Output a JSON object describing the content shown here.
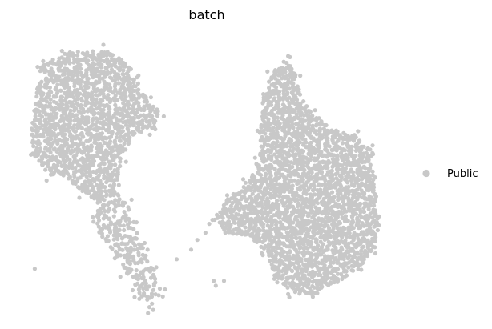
{
  "chart_data": {
    "type": "scatter",
    "title": "batch",
    "xlabel": "",
    "ylabel": "",
    "axes_visible": false,
    "grid": false,
    "legend_placement": "right",
    "point_color": "#c8c8c8",
    "series": [
      {
        "name": "Public",
        "color": "#c8c8c8",
        "clusters": [
          {
            "region": "upper-left",
            "outline": [
              [
                -9.6,
                7.2
              ],
              [
                -8.4,
                7.8
              ],
              [
                -6.6,
                7.9
              ],
              [
                -5.8,
                7.6
              ],
              [
                -5.1,
                7.0
              ],
              [
                -4.4,
                5.8
              ],
              [
                -3.8,
                5.3
              ],
              [
                -4.2,
                4.6
              ],
              [
                -5.2,
                4.3
              ],
              [
                -5.6,
                3.4
              ],
              [
                -6.0,
                2.0
              ],
              [
                -6.8,
                1.6
              ],
              [
                -7.6,
                2.0
              ],
              [
                -8.4,
                2.6
              ],
              [
                -9.2,
                2.7
              ],
              [
                -10.0,
                3.6
              ],
              [
                -10.1,
                4.6
              ],
              [
                -9.8,
                6.2
              ]
            ],
            "density": 0.9
          },
          {
            "region": "lower-left-tail",
            "outline": [
              [
                -6.8,
                1.8
              ],
              [
                -6.0,
                2.1
              ],
              [
                -5.4,
                1.5
              ],
              [
                -5.1,
                0.6
              ],
              [
                -4.6,
                -0.3
              ],
              [
                -4.1,
                -1.3
              ],
              [
                -3.8,
                -2.2
              ],
              [
                -4.2,
                -2.8
              ],
              [
                -4.9,
                -2.2
              ],
              [
                -5.5,
                -1.3
              ],
              [
                -6.0,
                -0.6
              ],
              [
                -6.6,
                0.1
              ],
              [
                -7.0,
                0.9
              ]
            ],
            "density": 0.6
          },
          {
            "region": "right",
            "outline": [
              [
                1.2,
                5.9
              ],
              [
                1.6,
                6.9
              ],
              [
                2.3,
                7.5
              ],
              [
                2.8,
                6.9
              ],
              [
                3.0,
                6.0
              ],
              [
                3.6,
                5.3
              ],
              [
                4.6,
                4.6
              ],
              [
                5.6,
                4.3
              ],
              [
                6.4,
                3.8
              ],
              [
                6.6,
                2.4
              ],
              [
                6.9,
                0.8
              ],
              [
                6.6,
                -0.4
              ],
              [
                5.9,
                -1.1
              ],
              [
                4.6,
                -1.9
              ],
              [
                3.6,
                -2.3
              ],
              [
                2.6,
                -2.2
              ],
              [
                1.8,
                -1.6
              ],
              [
                1.3,
                -0.6
              ],
              [
                0.8,
                0.1
              ],
              [
                -0.6,
                0.3
              ],
              [
                -1.2,
                0.9
              ],
              [
                -0.6,
                1.7
              ],
              [
                0.4,
                2.3
              ],
              [
                1.0,
                3.2
              ],
              [
                1.1,
                4.6
              ]
            ],
            "density": 1.0
          }
        ],
        "outliers": [
          [
            -9.9,
            -1.2
          ],
          [
            -3.0,
            -0.8
          ],
          [
            -2.3,
            -0.4
          ],
          [
            -2.0,
            0.0
          ],
          [
            -1.2,
            -1.7
          ],
          [
            -1.1,
            -1.9
          ],
          [
            -0.7,
            -1.7
          ],
          [
            -1.6,
            0.3
          ]
        ]
      }
    ],
    "xlim": [
      -10.5,
      7.5
    ],
    "ylim": [
      -3.0,
      8.5
    ]
  }
}
